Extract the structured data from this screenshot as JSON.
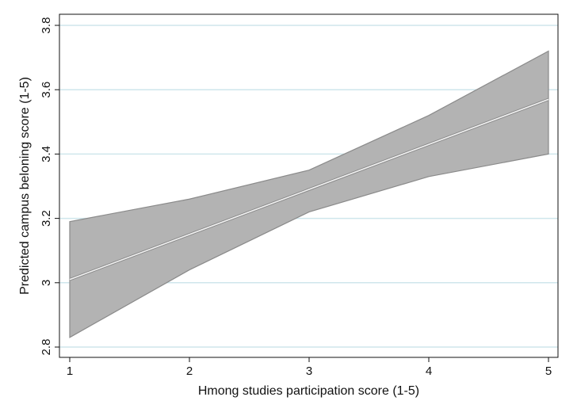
{
  "chart_data": {
    "type": "line",
    "xlabel": "Hmong studies participation score (1-5)",
    "ylabel": "Predicted campus beloning score (1-5)",
    "x": [
      1,
      2,
      3,
      4,
      5
    ],
    "xticks": [
      "1",
      "2",
      "3",
      "4",
      "5"
    ],
    "yticks": [
      "2.8",
      "3",
      "3.2",
      "3.4",
      "3.6",
      "3.8"
    ],
    "ytick_values": [
      2.8,
      3.0,
      3.2,
      3.4,
      3.6,
      3.8
    ],
    "xlim": [
      1,
      5
    ],
    "ylim": [
      2.8,
      3.8
    ],
    "grid": true,
    "series": [
      {
        "values": [
          3.01,
          3.15,
          3.29,
          3.43,
          3.57
        ]
      }
    ],
    "confidence_band": {
      "lower": [
        2.83,
        3.04,
        3.22,
        3.33,
        3.4
      ],
      "upper": [
        3.19,
        3.26,
        3.35,
        3.52,
        3.72
      ]
    },
    "colors": {
      "band_fill": "#b3b3b3",
      "band_edge": "#8a8a8a",
      "line": "#f2f2f2",
      "grid": "#cfe6ec",
      "axis": "#111111"
    }
  }
}
